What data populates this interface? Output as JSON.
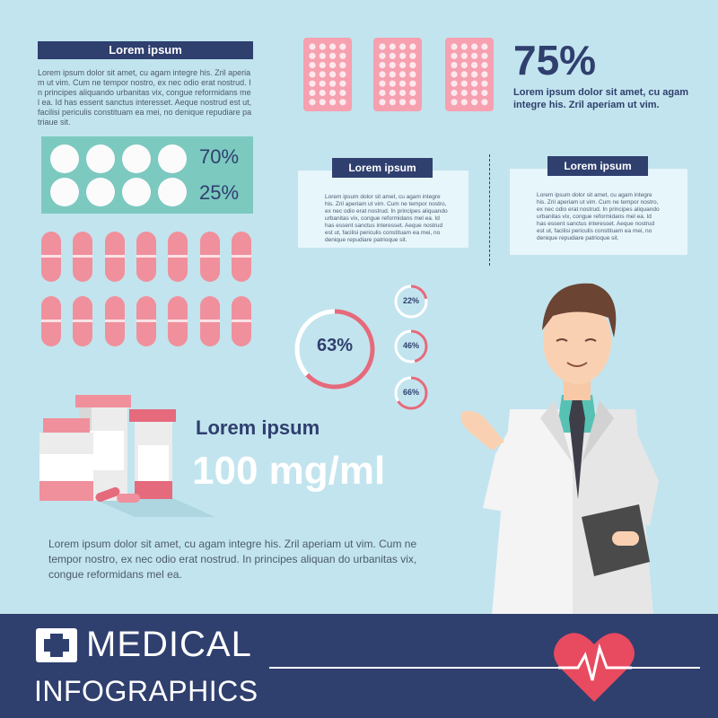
{
  "colors": {
    "background": "#c2e4ee",
    "navy": "#2f3f6e",
    "pink": "#f0909c",
    "teal": "#7cc9c0",
    "white": "#ffffff"
  },
  "top_left": {
    "heading": "Lorem ipsum",
    "body": "Lorem ipsum dolor sit amet, cu agam integre his. Zril aperia m ut vim. Cum ne tempor nostro, ex nec odio erat nostrud. I n principes aliquando urbanitas vix, congue reformidans me l ea. Id has essent sanctus interesset. Aeque nostrud est ut, facilisi periculis constituam ea mei, no denique repudiare pa triaue sit."
  },
  "tablet_panel": {
    "row1_percent": "70%",
    "row2_percent": "25%"
  },
  "blister_stat": {
    "percent": "75%",
    "caption": "Lorem ipsum dolor sit amet, cu agam integre his. Zril aperiam ut vim."
  },
  "card_left": {
    "heading": "Lorem ipsum",
    "body": "Lorem ipsum dolor sit amet, cu agam integre his. Zril aperiam ut vim. Cum ne tempor nostro, ex nec odio erat nostrud. In principes aliquando urbanitas vix, congue reformidans mel ea. Id has essent sanctus interesset. Aeque nostrud est ut, facilisi periculis constituam ea mei, no denique repudiare patrioque sit."
  },
  "card_right": {
    "heading": "Lorem ipsum",
    "body": "Lorem ipsum dolor sit amet, cu agam integre his. Zril aperiam ut vim. Cum ne tempor nostro, ex nec odio erat nostrud. In principes aliquando urbanitas vix, congue reformidans mel ea. Id has essent sanctus interesset. Aeque nostrud est ut, facilisi periculis constituam ea mei, no denique repudiare patrioque sit."
  },
  "rings": {
    "big": {
      "label": "63%",
      "value": 63
    },
    "small": [
      {
        "label": "22%",
        "value": 22
      },
      {
        "label": "46%",
        "value": 46
      },
      {
        "label": "66%",
        "value": 66
      }
    ]
  },
  "dosage": {
    "label": "Lorem ipsum",
    "value": "100 mg/ml"
  },
  "bottom_text": "Lorem ipsum dolor sit amet, cu agam integre his. Zril aperiam ut vim. Cum ne tempor nostro, ex nec odio erat nostrud. In principes aliquan do urbanitas vix, congue reformidans mel ea.",
  "footer": {
    "title_line1": "MEDICAL",
    "title_line2": "INFOGRAPHICS",
    "cross_icon": "medical-cross-icon",
    "heart_icon": "heartbeat-icon"
  }
}
